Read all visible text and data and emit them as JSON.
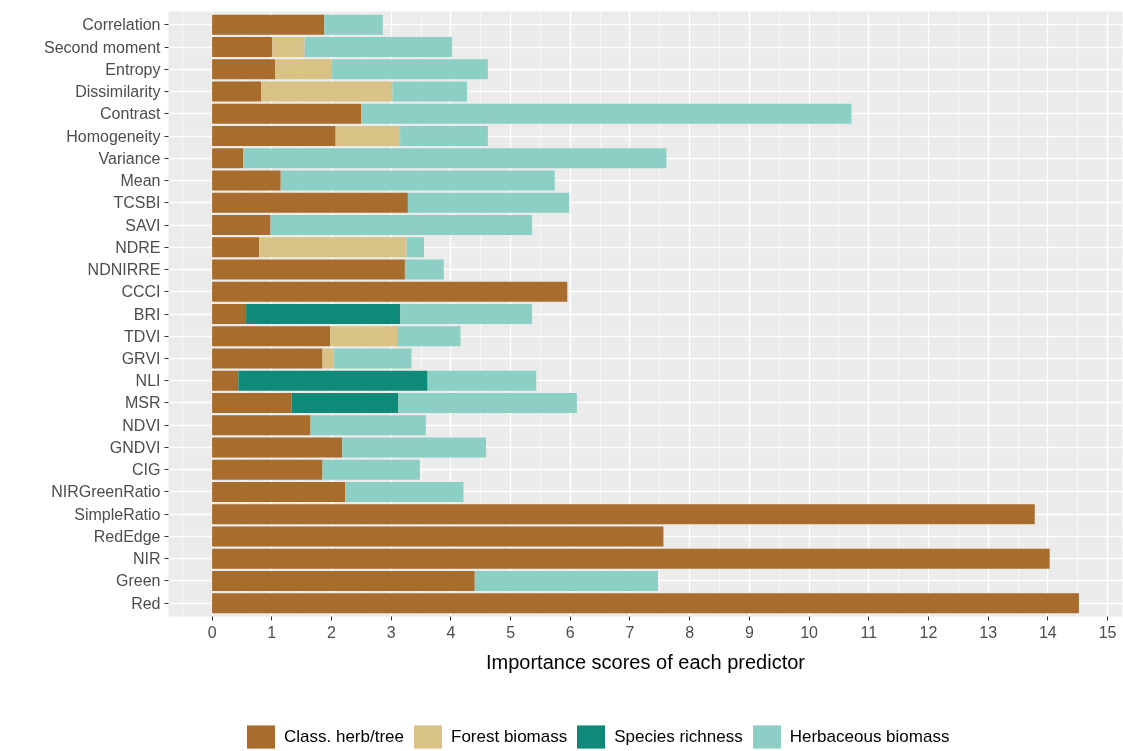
{
  "chart_data": {
    "type": "bar",
    "orientation": "horizontal",
    "stacked": true,
    "xlabel": "Importance scores of each predictor",
    "categories": [
      "Correlation",
      "Second moment",
      "Entropy",
      "Dissimilarity",
      "Contrast",
      "Homogeneity",
      "Variance",
      "Mean",
      "TCSBI",
      "SAVI",
      "NDRE",
      "NDNIRRE",
      "CCCI",
      "BRI",
      "TDVI",
      "GRVI",
      "NLI",
      "MSR",
      "NDVI",
      "GNDVI",
      "CIG",
      "NIRGreenRatio",
      "SimpleRatio",
      "RedEdge",
      "NIR",
      "Green",
      "Red"
    ],
    "series": [
      {
        "name": "Class. herb/tree",
        "color": "#a86c2c",
        "values": [
          1.88,
          1.01,
          1.06,
          0.82,
          2.5,
          2.07,
          0.52,
          1.15,
          3.28,
          0.98,
          0.79,
          3.23,
          5.95,
          0.57,
          1.98,
          1.85,
          0.44,
          1.33,
          1.65,
          2.18,
          1.85,
          2.23,
          13.78,
          7.56,
          14.03,
          4.4,
          14.52
        ]
      },
      {
        "name": "Forest biomass",
        "color": "#d8c285",
        "values": [
          null,
          0.54,
          0.95,
          2.2,
          null,
          1.08,
          null,
          null,
          null,
          null,
          2.47,
          null,
          null,
          null,
          1.12,
          0.19,
          null,
          null,
          null,
          null,
          null,
          null,
          null,
          null,
          null,
          null,
          null
        ]
      },
      {
        "name": "Species richness",
        "color": "#0f8a79",
        "values": [
          null,
          null,
          null,
          null,
          null,
          null,
          null,
          null,
          null,
          null,
          null,
          null,
          null,
          2.58,
          null,
          null,
          3.17,
          1.79,
          null,
          null,
          null,
          null,
          null,
          null,
          null,
          null,
          null
        ]
      },
      {
        "name": "Herbaceous biomass",
        "color": "#8ccfc4",
        "values": [
          0.98,
          2.47,
          2.61,
          1.25,
          8.21,
          1.47,
          7.09,
          4.59,
          2.7,
          4.38,
          0.29,
          0.65,
          null,
          2.21,
          1.06,
          1.3,
          1.82,
          2.99,
          1.93,
          2.41,
          1.63,
          1.98,
          null,
          null,
          null,
          3.07,
          null
        ]
      }
    ],
    "xlim": [
      -0.73,
      15.25
    ],
    "xticks": [
      0,
      1,
      2,
      3,
      4,
      5,
      6,
      7,
      8,
      9,
      10,
      11,
      12,
      13,
      14,
      15
    ],
    "grid": true,
    "legend": "bottom"
  }
}
